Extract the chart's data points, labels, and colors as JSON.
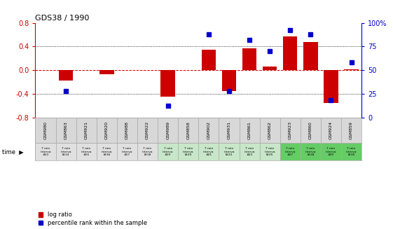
{
  "title": "GDS38 / 1990",
  "samples": [
    "GSM980",
    "GSM863",
    "GSM921",
    "GSM920",
    "GSM988",
    "GSM922",
    "GSM989",
    "GSM858",
    "GSM902",
    "GSM931",
    "GSM861",
    "GSM862",
    "GSM923",
    "GSM860",
    "GSM924",
    "GSM859"
  ],
  "intervals": [
    "7 min\ninterva\n#13",
    "7 min\ninterva\nl#14",
    "7 min\ninterva\n#15",
    "7 min\ninterva\nl#16",
    "7 min\ninterva\n#17",
    "7 min\ninterva\nl#18",
    "7 min\ninterva\n#19",
    "7 min\ninterva\nl#20",
    "7 min\ninterva\n#21",
    "7 min\ninterva\nl#22",
    "7 min\ninterva\n#23",
    "7 min\ninterva\nl#25",
    "7 min\ninterva\n#27",
    "7 min\ninterva\nl#28",
    "7 min\ninterva\n#29",
    "7 min\ninterva\nl#30"
  ],
  "log_ratio": [
    0.0,
    -0.18,
    0.0,
    -0.07,
    0.0,
    0.0,
    -0.45,
    0.0,
    0.34,
    -0.35,
    0.37,
    0.06,
    0.57,
    0.48,
    -0.55,
    0.01
  ],
  "percentile": [
    null,
    28,
    null,
    null,
    null,
    null,
    12,
    null,
    88,
    28,
    82,
    70,
    92,
    88,
    18,
    58
  ],
  "ylim_left": [
    -0.8,
    0.8
  ],
  "ylim_right": [
    0,
    100
  ],
  "yticks_left": [
    -0.8,
    -0.4,
    0.0,
    0.4,
    0.8
  ],
  "yticks_right": [
    0,
    25,
    50,
    75,
    100
  ],
  "bar_color": "#cc0000",
  "dot_color": "#0000cc",
  "zero_line_color": "#cc0000",
  "grid_color": "#000000",
  "bg_color": "#ffffff",
  "interval_colors_grey": "#e0e0e0",
  "interval_colors_lgreen": "#c8e6c9",
  "interval_colors_green": "#66cc66",
  "cell_border": "#aaaaaa",
  "sample_bg": "#d8d8d8"
}
